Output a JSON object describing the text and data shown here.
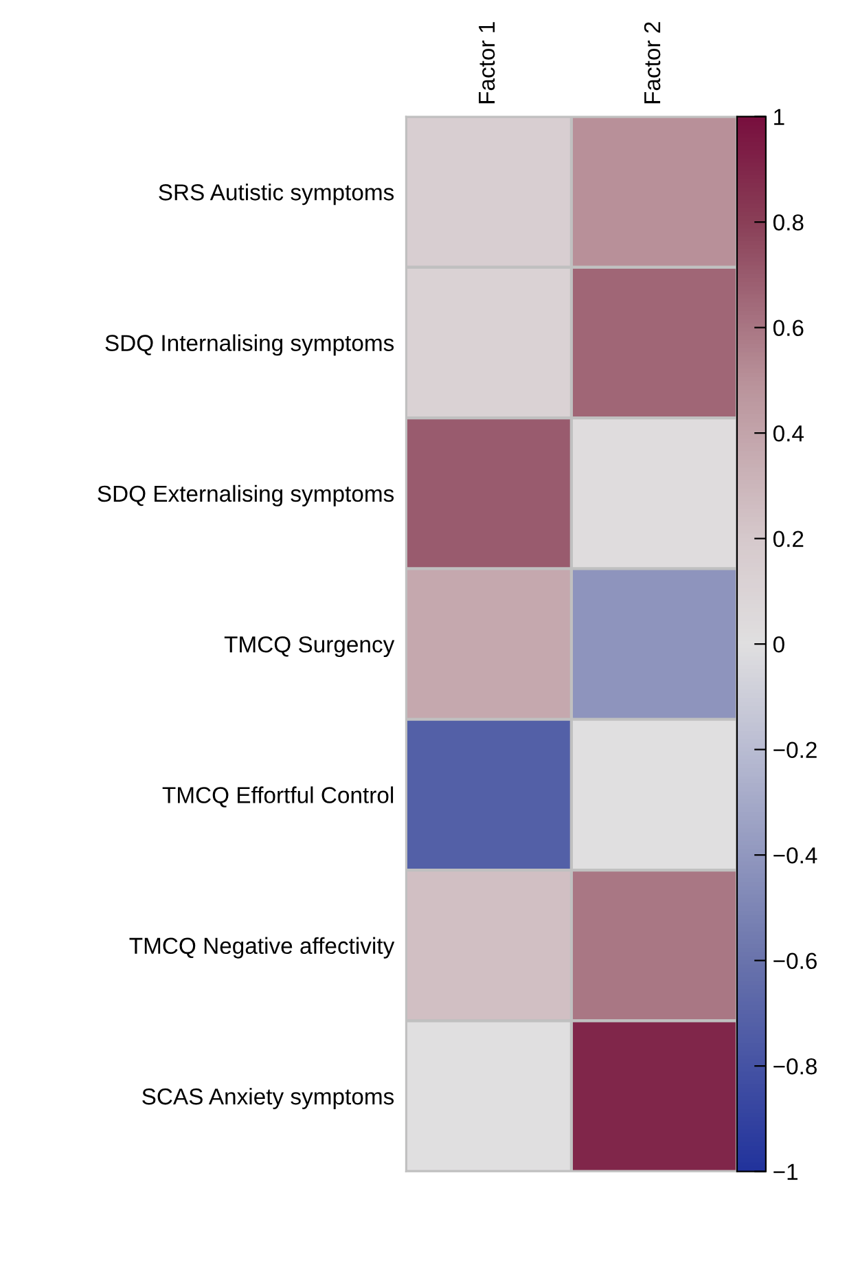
{
  "chart_data": {
    "type": "heatmap",
    "categories": [
      "Factor 1",
      "Factor 2"
    ],
    "y_categories": [
      "SRS Autistic symptoms",
      "SDQ Internalising symptoms",
      "SDQ Externalising symptoms",
      "TMCQ Surgency",
      "TMCQ Effortful Control",
      "TMCQ Negative affectivity",
      "SCAS Anxiety symptoms"
    ],
    "cells": [
      [
        0.15,
        0.5
      ],
      [
        0.12,
        0.66
      ],
      [
        0.7,
        0.03
      ],
      [
        0.38,
        -0.42
      ],
      [
        -0.72,
        0.0
      ],
      [
        0.25,
        0.6
      ],
      [
        0.0,
        0.9
      ]
    ],
    "clim": [
      -1,
      1
    ],
    "cticks": [
      {
        "value": -1,
        "label": "−1"
      },
      {
        "value": -0.8,
        "label": "−0.8"
      },
      {
        "value": -0.6,
        "label": "−0.6"
      },
      {
        "value": -0.4,
        "label": "−0.4"
      },
      {
        "value": -0.2,
        "label": "−0.2"
      },
      0,
      0.2,
      0.4,
      0.6,
      0.8,
      1
    ]
  }
}
